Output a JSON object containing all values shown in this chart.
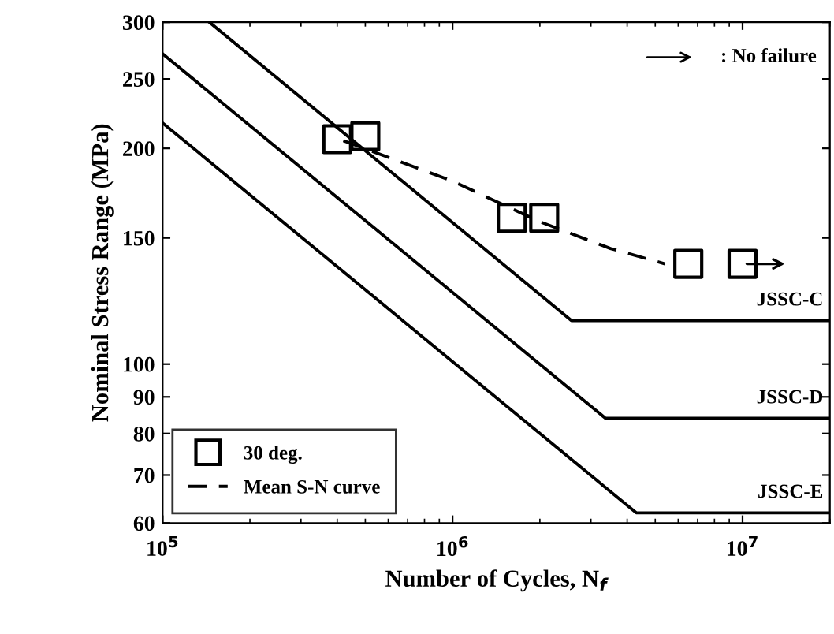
{
  "chart_data": {
    "type": "line",
    "xlabel": "Number of Cycles, N$_{f}$",
    "ylabel": "Nominal Stress Range (MPa)",
    "annotations": [
      ": No failure"
    ],
    "log": "xy",
    "xlim": [
      100000,
      20000000
    ],
    "xticks": [
      {
        "value": 100000,
        "label": "10$^{5}$"
      },
      {
        "value": 1000000,
        "label": "10$^{6}$"
      },
      {
        "value": 10000000,
        "label": "10$^{7}$"
      }
    ],
    "ylim": [
      60,
      300
    ],
    "yticks": [
      60,
      70,
      80,
      90,
      100,
      150,
      200,
      250,
      300
    ],
    "grid": false,
    "legend": "bottom left",
    "series": [
      {
        "name": "30 deg.",
        "type": "scatter",
        "marker": "square",
        "color": "#000000",
        "x": [
          400000,
          500000,
          1600000,
          2070000,
          6500000,
          10000000
        ],
        "values": [
          206,
          208,
          160,
          160,
          138,
          138
        ]
      },
      {
        "name": "Mean S-N curve",
        "type": "line",
        "line_style": "dashed",
        "color": "#000000",
        "x": [
          420000,
          1000000,
          2000000,
          3500000,
          5400000
        ],
        "values": [
          205,
          180,
          158,
          145,
          138
        ]
      },
      {
        "name": "JSSC-C",
        "type": "line",
        "line_style": "solid",
        "color": "#000000",
        "x": [
          145000,
          2570000,
          20000000
        ],
        "values": [
          300,
          115,
          115
        ]
      },
      {
        "name": "JSSC-D",
        "type": "line",
        "line_style": "solid",
        "color": "#000000",
        "x": [
          100000,
          3370000,
          20000000
        ],
        "values": [
          271,
          84,
          84
        ]
      },
      {
        "name": "JSSC-E",
        "type": "line",
        "line_style": "solid",
        "color": "#000000",
        "x": [
          100000,
          4300000,
          20000000
        ],
        "values": [
          217,
          62,
          62
        ]
      }
    ]
  }
}
